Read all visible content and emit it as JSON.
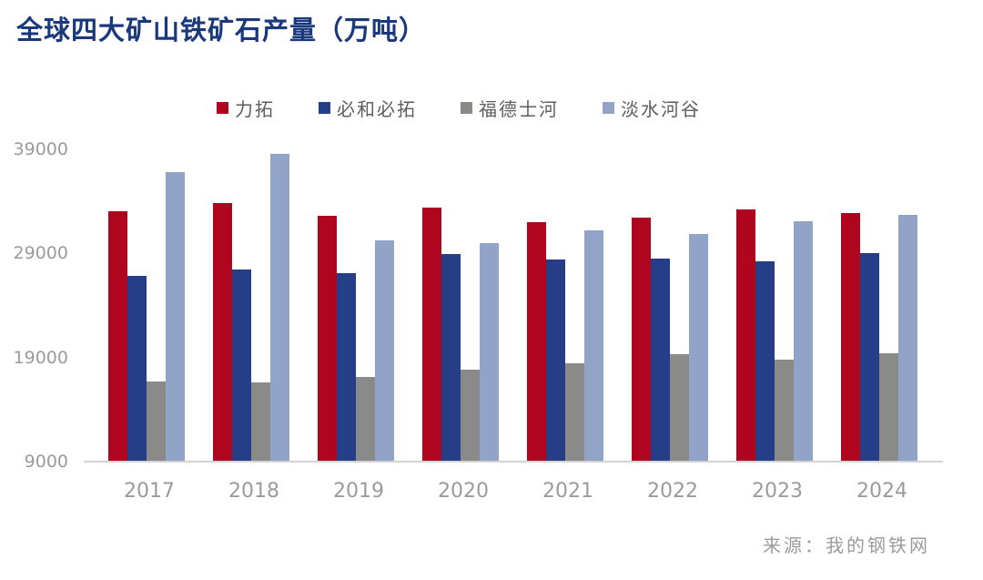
{
  "title": "全球四大矿山铁矿石产量（万吨）",
  "source": "来源：我的钢铁网",
  "colors": {
    "rio_tinto_red": "#b0051e",
    "bhp_dark_blue": "#263e88",
    "fortescue_gray": "#8a8a88",
    "vale_light_blue": "#92a3c8",
    "title_navy": "#19397c",
    "axis_label_gray": "#9b9b9b",
    "legend_text_gray": "#5e5e5e",
    "axis_line_gray": "#d4d4d4"
  },
  "chart_data": {
    "type": "bar",
    "title": "全球四大矿山铁矿石产量（万吨）",
    "categories": [
      "2017",
      "2018",
      "2019",
      "2020",
      "2021",
      "2022",
      "2023",
      "2024"
    ],
    "series": [
      {
        "name": "力拓",
        "color": "#b0051e",
        "values": [
          33000,
          33800,
          32600,
          33400,
          32000,
          32400,
          33200,
          32800
        ]
      },
      {
        "name": "必和必拓",
        "color": "#263e88",
        "values": [
          26800,
          27400,
          27100,
          28900,
          28400,
          28500,
          28200,
          29000
        ]
      },
      {
        "name": "福德士河",
        "color": "#8a8a88",
        "values": [
          16700,
          16600,
          17100,
          17800,
          18400,
          19300,
          18800,
          19400
        ]
      },
      {
        "name": "淡水河谷",
        "color": "#92a3c8",
        "values": [
          36800,
          38500,
          30200,
          30000,
          31200,
          30800,
          32100,
          32700
        ]
      }
    ],
    "xlabel": "",
    "ylabel": "",
    "yticks": [
      39000,
      29000,
      19000,
      9000
    ],
    "ylim": [
      9000,
      39500
    ],
    "grid": false,
    "legend_position": "top"
  }
}
